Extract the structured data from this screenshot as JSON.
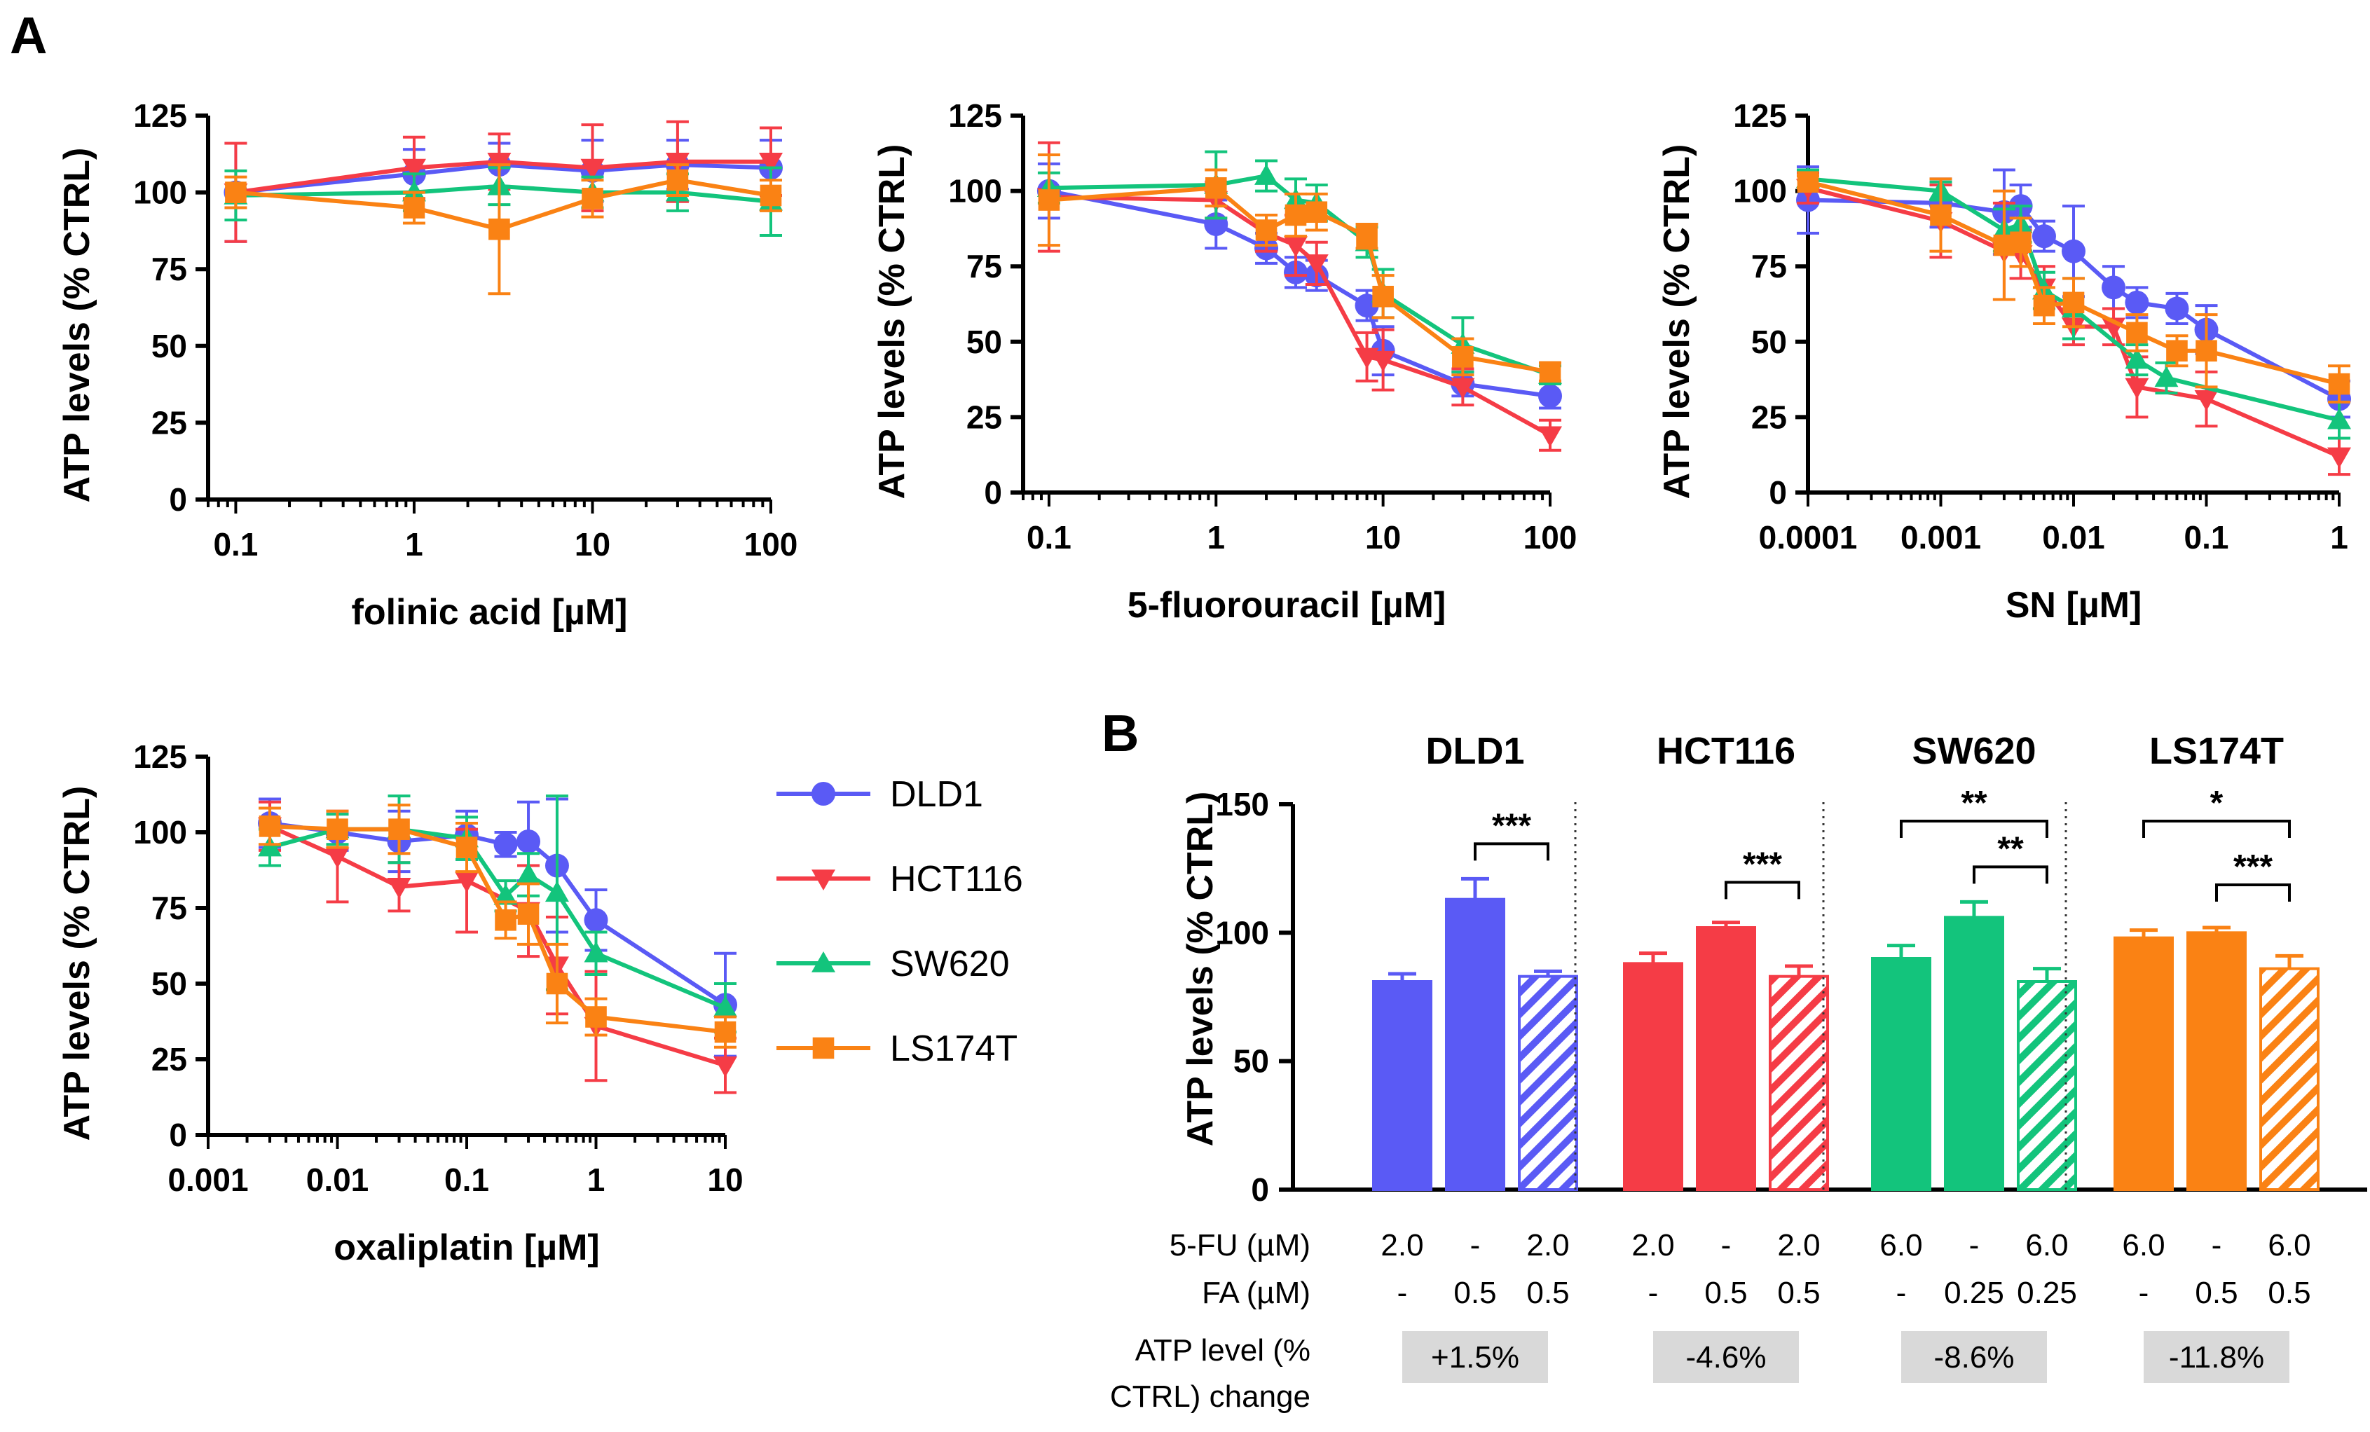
{
  "panels": {
    "a": "A",
    "b": "B"
  },
  "colors": {
    "DLD1": "#5a5af5",
    "HCT116": "#f53c46",
    "SW620": "#13c47c",
    "LS174T": "#fa8214",
    "change_box": "#d9d9d9",
    "axis": "#000000"
  },
  "legend": [
    "DLD1",
    "HCT116",
    "SW620",
    "LS174T"
  ],
  "chart_data": [
    {
      "id": "folinic",
      "type": "line",
      "xscale": "log",
      "xlim": [
        0.07,
        100
      ],
      "ylim": [
        0,
        125
      ],
      "yticks": [
        0,
        25,
        50,
        75,
        100,
        125
      ],
      "xticks": [
        {
          "v": 0.1,
          "label": "0.1"
        },
        {
          "v": 1,
          "label": "1"
        },
        {
          "v": 10,
          "label": "10"
        },
        {
          "v": 100,
          "label": "100"
        }
      ],
      "xlabel": "folinic  acid [µM]",
      "ylabel": "ATP levels (% CTRL)",
      "series": [
        {
          "name": "DLD1",
          "x": [
            0.1,
            1,
            3,
            10,
            30,
            100
          ],
          "y": [
            100,
            106,
            109,
            107,
            109,
            108
          ],
          "err": [
            16,
            8,
            7,
            10,
            8,
            9
          ]
        },
        {
          "name": "HCT116",
          "x": [
            0.1,
            1,
            3,
            10,
            30,
            100
          ],
          "y": [
            100,
            108,
            110,
            108,
            110,
            110
          ],
          "err": [
            16,
            10,
            9,
            14,
            13,
            11
          ]
        },
        {
          "name": "SW620",
          "x": [
            0.1,
            1,
            3,
            10,
            30,
            100
          ],
          "y": [
            99,
            100,
            102,
            100,
            100,
            97
          ],
          "err": [
            8,
            6,
            6,
            5,
            6,
            11
          ]
        },
        {
          "name": "LS174T",
          "x": [
            0.1,
            1,
            3,
            10,
            30,
            100
          ],
          "y": [
            100,
            95,
            88,
            98,
            104,
            99
          ],
          "err": [
            5,
            5,
            21,
            6,
            5,
            5
          ]
        }
      ]
    },
    {
      "id": "fluorouracil",
      "type": "line",
      "xscale": "log",
      "xlim": [
        0.07,
        100
      ],
      "ylim": [
        0,
        125
      ],
      "yticks": [
        0,
        25,
        50,
        75,
        100,
        125
      ],
      "xticks": [
        {
          "v": 0.1,
          "label": "0.1"
        },
        {
          "v": 1,
          "label": "1"
        },
        {
          "v": 10,
          "label": "10"
        },
        {
          "v": 100,
          "label": "100"
        }
      ],
      "xlabel": "5-fluorouracil [µM]",
      "ylabel": "ATP levels (% CTRL)",
      "series": [
        {
          "name": "DLD1",
          "x": [
            0.1,
            1,
            2,
            3,
            4,
            8,
            10,
            30,
            100
          ],
          "y": [
            100,
            89,
            81,
            73,
            72,
            62,
            47,
            36,
            32
          ],
          "err": [
            9,
            8,
            5,
            5,
            5,
            5,
            8,
            4,
            4
          ]
        },
        {
          "name": "HCT116",
          "x": [
            0.1,
            1,
            2,
            3,
            4,
            8,
            10,
            30,
            100
          ],
          "y": [
            98,
            97,
            86,
            82,
            76,
            45,
            44,
            35,
            19
          ],
          "err": [
            18,
            6,
            6,
            10,
            7,
            8,
            10,
            6,
            5
          ]
        },
        {
          "name": "SW620",
          "x": [
            0.1,
            1,
            2,
            3,
            4,
            8,
            10,
            30,
            100
          ],
          "y": [
            101,
            102,
            105,
            97,
            96,
            83,
            66,
            49,
            39
          ],
          "err": [
            5,
            11,
            5,
            7,
            6,
            5,
            8,
            9,
            3
          ]
        },
        {
          "name": "LS174T",
          "x": [
            0.1,
            1,
            2,
            3,
            4,
            8,
            10,
            30,
            100
          ],
          "y": [
            97,
            101,
            87,
            92,
            93,
            85,
            65,
            45,
            40
          ],
          "err": [
            15,
            6,
            5,
            7,
            6,
            4,
            7,
            6,
            3
          ]
        }
      ]
    },
    {
      "id": "sn",
      "type": "line",
      "xscale": "log",
      "xlim": [
        0.0001,
        1
      ],
      "ylim": [
        0,
        125
      ],
      "yticks": [
        0,
        25,
        50,
        75,
        100,
        125
      ],
      "xticks": [
        {
          "v": 0.0001,
          "label": "0.0001"
        },
        {
          "v": 0.001,
          "label": "0.001"
        },
        {
          "v": 0.01,
          "label": "0.01"
        },
        {
          "v": 0.1,
          "label": "0.1"
        },
        {
          "v": 1,
          "label": "1"
        }
      ],
      "xlabel": "SN [µM]",
      "ylabel": "ATP levels (% CTRL)",
      "series": [
        {
          "name": "DLD1",
          "x": [
            0.0001,
            0.001,
            0.003,
            0.004,
            0.006,
            0.01,
            0.02,
            0.03,
            0.06,
            0.1,
            1
          ],
          "y": [
            97,
            96,
            93,
            95,
            85,
            80,
            68,
            63,
            61,
            54,
            31
          ],
          "err": [
            11,
            8,
            14,
            7,
            5,
            15,
            7,
            5,
            5,
            8,
            6
          ]
        },
        {
          "name": "HCT116",
          "x": [
            0.0001,
            0.001,
            0.003,
            0.004,
            0.006,
            0.01,
            0.02,
            0.03,
            0.1,
            1
          ],
          "y": [
            101,
            90,
            80,
            79,
            68,
            55,
            55,
            35,
            31,
            12
          ],
          "err": [
            5,
            12,
            16,
            8,
            7,
            6,
            6,
            10,
            9,
            6
          ]
        },
        {
          "name": "SW620",
          "x": [
            0.0001,
            0.001,
            0.003,
            0.004,
            0.006,
            0.01,
            0.03,
            0.05,
            1
          ],
          "y": [
            104,
            100,
            87,
            89,
            67,
            61,
            44,
            38,
            24
          ],
          "err": [
            3,
            3,
            7,
            6,
            6,
            10,
            5,
            5,
            6
          ]
        },
        {
          "name": "LS174T",
          "x": [
            0.0001,
            0.001,
            0.003,
            0.004,
            0.006,
            0.01,
            0.03,
            0.06,
            0.1,
            1
          ],
          "y": [
            103,
            92,
            82,
            83,
            62,
            63,
            53,
            47,
            47,
            36
          ],
          "err": [
            2,
            12,
            18,
            8,
            6,
            8,
            6,
            5,
            12,
            6
          ]
        }
      ]
    },
    {
      "id": "oxaliplatin",
      "type": "line",
      "xscale": "log",
      "xlim": [
        0.001,
        10
      ],
      "ylim": [
        0,
        125
      ],
      "yticks": [
        0,
        25,
        50,
        75,
        100,
        125
      ],
      "xticks": [
        {
          "v": 0.001,
          "label": "0.001"
        },
        {
          "v": 0.01,
          "label": "0.01"
        },
        {
          "v": 0.1,
          "label": "0.1"
        },
        {
          "v": 1,
          "label": "1"
        },
        {
          "v": 10,
          "label": "10"
        }
      ],
      "xlabel": "oxaliplatin [µM]",
      "ylabel": "ATP levels (% CTRL)",
      "series": [
        {
          "name": "DLD1",
          "x": [
            0.003,
            0.01,
            0.03,
            0.1,
            0.2,
            0.3,
            0.5,
            1,
            10
          ],
          "y": [
            103,
            100,
            97,
            99,
            96,
            97,
            89,
            71,
            43
          ],
          "err": [
            8,
            6,
            10,
            8,
            4,
            13,
            22,
            10,
            17
          ]
        },
        {
          "name": "HCT116",
          "x": [
            0.003,
            0.01,
            0.03,
            0.1,
            0.3,
            0.5,
            1,
            10
          ],
          "y": [
            102,
            92,
            82,
            84,
            74,
            56,
            36,
            23
          ],
          "err": [
            8,
            15,
            8,
            17,
            15,
            16,
            18,
            9
          ]
        },
        {
          "name": "SW620",
          "x": [
            0.003,
            0.01,
            0.03,
            0.1,
            0.2,
            0.3,
            0.5,
            1,
            10
          ],
          "y": [
            95,
            101,
            101,
            98,
            79,
            86,
            80,
            60,
            42
          ],
          "err": [
            6,
            5,
            11,
            7,
            5,
            7,
            32,
            7,
            8
          ]
        },
        {
          "name": "LS174T",
          "x": [
            0.003,
            0.01,
            0.03,
            0.1,
            0.2,
            0.3,
            0.5,
            1,
            10
          ],
          "y": [
            102,
            101,
            101,
            95,
            71,
            73,
            50,
            39,
            34
          ],
          "err": [
            6,
            6,
            8,
            8,
            6,
            10,
            13,
            6,
            5
          ]
        }
      ]
    },
    {
      "id": "bars",
      "type": "bar",
      "ylim": [
        0,
        150
      ],
      "yticks": [
        0,
        50,
        100,
        150
      ],
      "ylabel": "ATP levels (% CTRL)",
      "row_labels": [
        "5-FU (µM)",
        "FA (µM)",
        "ATP level (%",
        "CTRL) change"
      ],
      "groups": [
        {
          "name": "DLD1",
          "values": [
            81,
            113,
            83
          ],
          "err": [
            3,
            8,
            2
          ],
          "fu": [
            "2.0",
            "-",
            "2.0"
          ],
          "fa": [
            "-",
            "0.5",
            "0.5"
          ],
          "change": "+1.5%",
          "sig": [
            {
              "from": 1,
              "to": 2,
              "label": "***",
              "level": 0
            }
          ]
        },
        {
          "name": "HCT116",
          "values": [
            88,
            102,
            83
          ],
          "err": [
            4,
            2,
            4
          ],
          "fu": [
            "2.0",
            "-",
            "2.0"
          ],
          "fa": [
            "-",
            "0.5",
            "0.5"
          ],
          "change": "-4.6%",
          "sig": [
            {
              "from": 1,
              "to": 2,
              "label": "***",
              "level": 0
            }
          ]
        },
        {
          "name": "SW620",
          "values": [
            90,
            106,
            81
          ],
          "err": [
            5,
            6,
            5
          ],
          "fu": [
            "6.0",
            "-",
            "6.0"
          ],
          "fa": [
            "-",
            "0.25",
            "0.25"
          ],
          "change": "-8.6%",
          "sig": [
            {
              "from": 0,
              "to": 2,
              "label": "**",
              "level": 1
            },
            {
              "from": 1,
              "to": 2,
              "label": "**",
              "level": 0
            }
          ]
        },
        {
          "name": "LS174T",
          "values": [
            98,
            100,
            86
          ],
          "err": [
            3,
            2,
            5
          ],
          "fu": [
            "6.0",
            "-",
            "6.0"
          ],
          "fa": [
            "-",
            "0.5",
            "0.5"
          ],
          "change": "-11.8%",
          "sig": [
            {
              "from": 0,
              "to": 2,
              "label": "*",
              "level": 1
            },
            {
              "from": 1,
              "to": 2,
              "label": "***",
              "level": 0
            }
          ]
        }
      ]
    }
  ]
}
